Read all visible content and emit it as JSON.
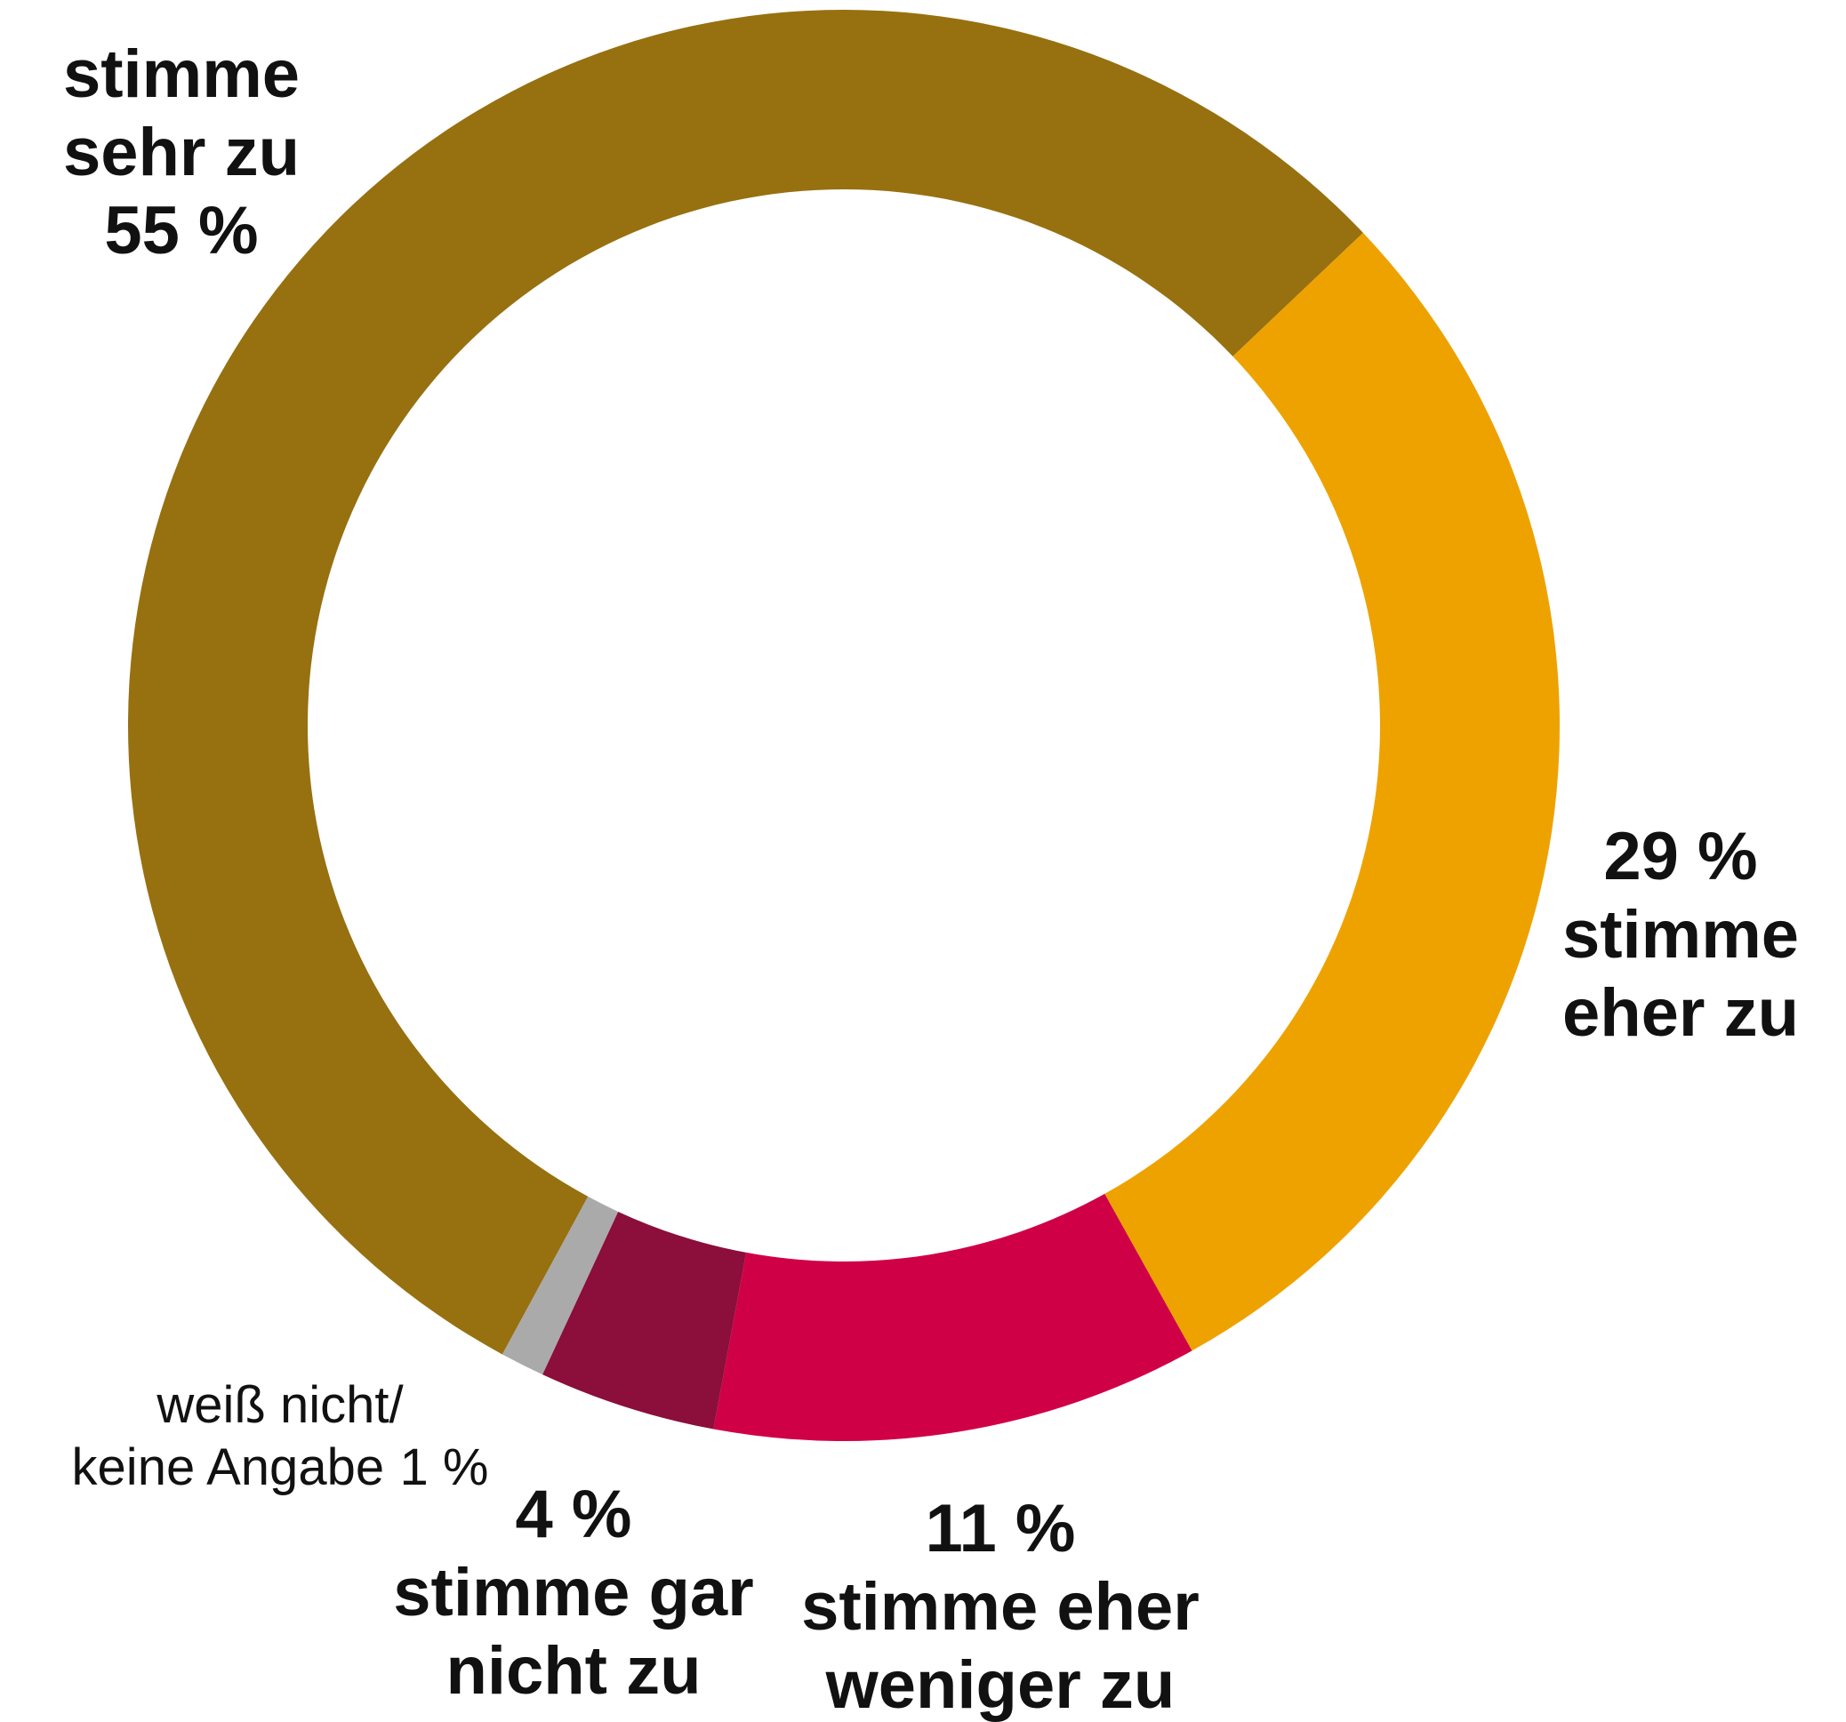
{
  "chart_data": {
    "type": "donut",
    "categories": [
      "stimme\nsehr zu",
      "stimme\neher zu",
      "stimme eher\nweniger zu",
      "stimme gar\nnicht zu",
      "weiß nicht/\nkeine Angabe"
    ],
    "values": [
      55,
      29,
      11,
      4,
      1
    ],
    "value_labels": [
      "55 %",
      "29 %",
      "11 %",
      "4 %",
      "1 %"
    ],
    "colors": [
      "#977010",
      "#eea200",
      "#d00046",
      "#8b0e3b",
      "#aaaaaa"
    ]
  }
}
